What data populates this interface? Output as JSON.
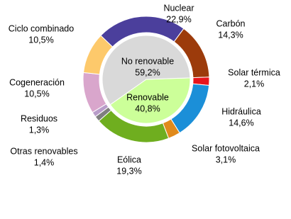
{
  "chart_data": {
    "type": "donut",
    "categories": [
      "Nuclear",
      "Carbón",
      "Solar térmica",
      "Hidráulica",
      "Solar fotovoltaica",
      "Eólica",
      "Otras renovables",
      "Residuos",
      "Cogeneración",
      "Ciclo combinado"
    ],
    "values": [
      22.9,
      14.3,
      2.1,
      14.6,
      3.1,
      19.3,
      1.4,
      1.3,
      10.5,
      10.5
    ],
    "value_labels": [
      "22,9%",
      "14,3%",
      "2,1%",
      "14,6%",
      "3,1%",
      "19,3%",
      "1,4%",
      "1,3%",
      "10,5%",
      "10,5%"
    ],
    "colors": [
      "#4b3f9c",
      "#9c3b0b",
      "#e8141c",
      "#1b8fd8",
      "#e08a1c",
      "#6fae1f",
      "#7f7f7f",
      "#b89cc9",
      "#d9a6cc",
      "#fdc96b"
    ],
    "inner": {
      "categories": [
        "Renovable",
        "No renovable"
      ],
      "values": [
        40.8,
        59.2
      ],
      "value_labels": [
        "40,8%",
        "59,2%"
      ],
      "colors": [
        "#ccff99",
        "#d9d9d9"
      ]
    }
  }
}
